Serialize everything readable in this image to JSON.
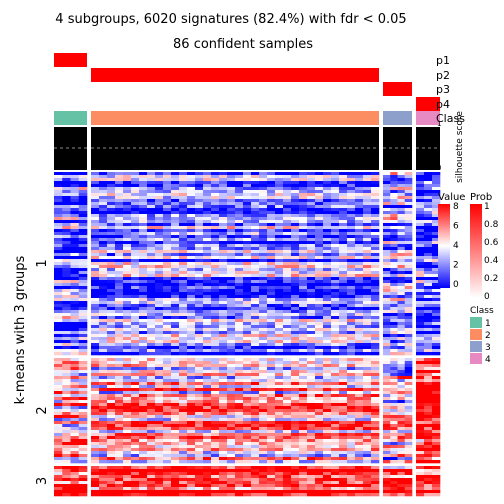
{
  "chart_data": {
    "type": "heatmap",
    "title": "4 subgroups, 6020 signatures (82.4%) with fdr < 0.05",
    "subtitle": "86 confident samples",
    "ylabel": "k-means with 3 groups",
    "row_groups": [
      "1",
      "2",
      "3"
    ],
    "row_group_fractions": [
      0.575,
      0.33,
      0.095
    ],
    "column_groups": [
      {
        "class": "1",
        "fraction": 0.09
      },
      {
        "class": "2",
        "fraction": 0.785
      },
      {
        "class": "3",
        "fraction": 0.078
      },
      {
        "class": "4",
        "fraction": 0.065
      }
    ],
    "annotation_tracks": [
      "p1",
      "p2",
      "p3",
      "p4",
      "Class"
    ],
    "silhouette_label": "silhouette score",
    "silhouette_ticks": [
      "1",
      "0"
    ],
    "value_legend": {
      "title": "Value",
      "ticks": [
        "8",
        "6",
        "4",
        "2",
        "0"
      ],
      "colors": [
        "#ff0000",
        "#ffffff",
        "#0000ff"
      ]
    },
    "prob_legend": {
      "title": "Prob",
      "ticks": [
        "1",
        "0.8",
        "0.6",
        "0.4",
        "0.2",
        "0"
      ],
      "colors": [
        "#ff0000",
        "#ffffff"
      ]
    },
    "class_legend": {
      "title": "Class",
      "items": [
        {
          "label": "1",
          "color": "#66c2a5"
        },
        {
          "label": "2",
          "color": "#fc8d62"
        },
        {
          "label": "3",
          "color": "#8da0cb"
        },
        {
          "label": "4",
          "color": "#e78ac3"
        }
      ]
    }
  }
}
